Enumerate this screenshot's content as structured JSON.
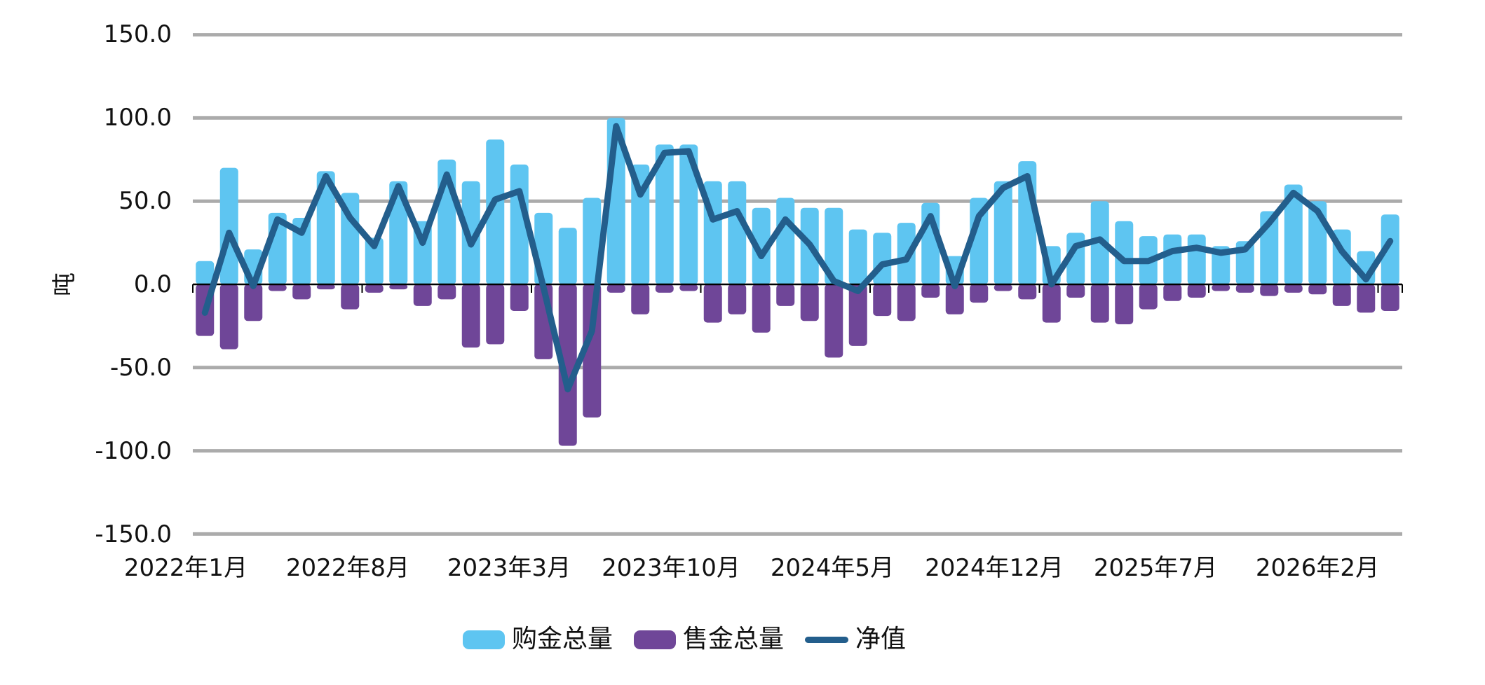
{
  "chart_data": {
    "type": "bar",
    "subtype": "monthly bar series with overlaid net line",
    "title": "",
    "xlabel": "",
    "ylabel": "吨",
    "ylim": [
      -150,
      150
    ],
    "y_tick_step": 50,
    "grid": true,
    "legend_position": "bottom",
    "n_categories": 50,
    "first_category": "2022年1月",
    "last_category": "2026年2月",
    "x_tick_labels": [
      "2022年1月",
      "2022年8月",
      "2023年3月",
      "2023年10月",
      "2024年5月",
      "2024年12月",
      "2025年7月",
      "2026年2月"
    ],
    "y_tick_labels": [
      "150.0",
      "100.0",
      "50.0",
      "0.0",
      "-50.0",
      "-100.0",
      "-150.0"
    ],
    "series": [
      {
        "name": "购金总量",
        "kind": "bar",
        "color": "#5ec5f1",
        "values": [
          14,
          70,
          21,
          43,
          40,
          68,
          55,
          28,
          62,
          38,
          75,
          62,
          87,
          72,
          43,
          34,
          52,
          100,
          72,
          84,
          84,
          62,
          62,
          46,
          52,
          46,
          46,
          33,
          31,
          37,
          49,
          17,
          52,
          62,
          74,
          23,
          31,
          50,
          38,
          29,
          30,
          30,
          23,
          26,
          44,
          60,
          50,
          33,
          20,
          42
        ]
      },
      {
        "name": "售金总量",
        "kind": "bar",
        "color": "#6f4698",
        "values": [
          -31,
          -39,
          -22,
          -4,
          -9,
          -3,
          -15,
          -5,
          -3,
          -13,
          -9,
          -38,
          -36,
          -16,
          -45,
          -97,
          -80,
          -5,
          -18,
          -5,
          -4,
          -23,
          -18,
          -29,
          -13,
          -22,
          -44,
          -37,
          -19,
          -22,
          -8,
          -18,
          -11,
          -4,
          -9,
          -23,
          -8,
          -23,
          -24,
          -15,
          -10,
          -8,
          -4,
          -5,
          -7,
          -5,
          -6,
          -13,
          -17,
          -16
        ]
      },
      {
        "name": "净值",
        "kind": "line",
        "color": "#235e8c",
        "values": [
          -17,
          31,
          -1,
          39,
          31,
          65,
          40,
          23,
          59,
          25,
          66,
          24,
          51,
          56,
          -2,
          -63,
          -28,
          95,
          54,
          79,
          80,
          39,
          44,
          17,
          39,
          24,
          2,
          -4,
          12,
          15,
          41,
          -1,
          41,
          58,
          65,
          0,
          23,
          27,
          14,
          14,
          20,
          22,
          19,
          21,
          37,
          55,
          44,
          20,
          3,
          26
        ]
      }
    ],
    "colors": {
      "gridline": "#ababab",
      "axis": "#000000",
      "text": "#111111",
      "background": "#ffffff"
    }
  }
}
